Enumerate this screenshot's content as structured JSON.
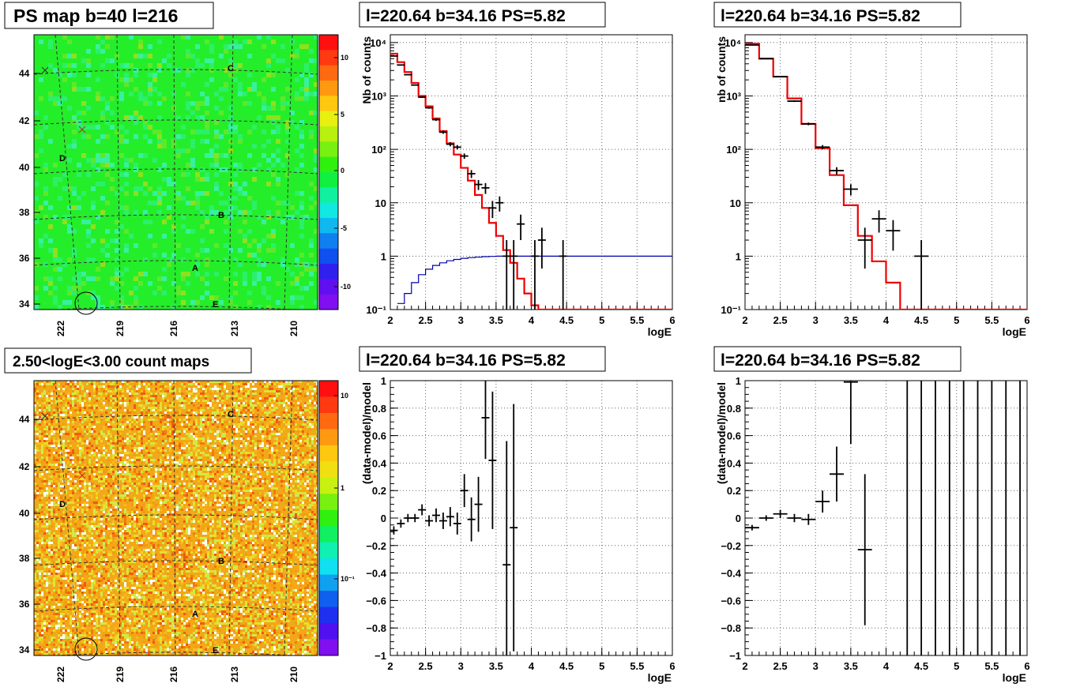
{
  "figure_panels": {
    "map_top_title": "PS map b=40 l=216",
    "map_bottom_title": "2.50<logE<3.00 count maps",
    "spec_title_1": "l=220.64 b=34.16 PS=5.82",
    "spec_title_2": "l=220.64 b=34.16 PS=5.82",
    "resid_title_1": "l=220.64 b=34.16 PS=5.82",
    "resid_title_2": "l=220.64 b=34.16 PS=5.82"
  },
  "chart_data": [
    {
      "id": "ps_map",
      "type": "heatmap",
      "title": "PS map b=40 l=216",
      "y_ticks": [
        "44",
        "42",
        "40",
        "38",
        "36",
        "34"
      ],
      "x_ticks": [
        "222",
        "219",
        "216",
        "213",
        "210"
      ],
      "colorbar_ticks": [
        "10",
        "5",
        "0",
        "-5",
        "-10"
      ],
      "colorbar_range": [
        -12,
        12
      ],
      "source_labels": [
        "A",
        "B",
        "C",
        "D",
        "E"
      ],
      "colors": {
        "base": "#22ee22",
        "alt": "#3af060",
        "hot": "#77e628"
      }
    },
    {
      "id": "count_map",
      "type": "heatmap",
      "title": "2.50<logE<3.00 count maps",
      "y_ticks": [
        "44",
        "42",
        "40",
        "38",
        "36",
        "34"
      ],
      "x_ticks": [
        "222",
        "219",
        "216",
        "213",
        "210"
      ],
      "colorbar_ticks": [
        "10",
        "1",
        "10⁻¹"
      ],
      "source_labels": [
        "A",
        "B",
        "C",
        "D",
        "E"
      ]
    },
    {
      "id": "spectrum_1",
      "type": "line",
      "title": "l=220.64 b=34.16 PS=5.82",
      "xlabel": "logE",
      "ylabel": "Nb of counts",
      "xlim": [
        2,
        6
      ],
      "ylim": [
        0.1,
        14000
      ],
      "log_y": true,
      "grid": true,
      "x_ticks": [
        "2",
        "2.5",
        "3",
        "3.5",
        "4",
        "4.5",
        "5",
        "5.5",
        "6"
      ],
      "y_ticks": [
        "10⁻¹",
        "1",
        "10",
        "10²",
        "10³",
        "10⁴"
      ],
      "points": [
        {
          "x": 2.05,
          "y": 5600
        },
        {
          "x": 2.15,
          "y": 3800
        },
        {
          "x": 2.25,
          "y": 2500
        },
        {
          "x": 2.35,
          "y": 1600
        },
        {
          "x": 2.45,
          "y": 950
        },
        {
          "x": 2.55,
          "y": 600
        },
        {
          "x": 2.65,
          "y": 360
        },
        {
          "x": 2.75,
          "y": 210
        },
        {
          "x": 2.85,
          "y": 125
        },
        {
          "x": 2.95,
          "y": 110
        },
        {
          "x": 3.05,
          "y": 75
        },
        {
          "x": 3.15,
          "y": 35
        },
        {
          "x": 3.25,
          "y": 22
        },
        {
          "x": 3.35,
          "y": 19
        },
        {
          "x": 3.45,
          "y": 8
        },
        {
          "x": 3.55,
          "y": 10
        },
        {
          "x": 3.65,
          "y": 1
        },
        {
          "x": 3.75,
          "y": 1
        },
        {
          "x": 3.85,
          "y": 4
        },
        {
          "x": 4.05,
          "y": 1
        },
        {
          "x": 4.15,
          "y": 2
        },
        {
          "x": 4.45,
          "y": 1
        }
      ],
      "series": [
        {
          "name": "model",
          "color": "#ee0000",
          "steps": [
            [
              2,
              6200
            ],
            [
              2.1,
              4300
            ],
            [
              2.2,
              2800
            ],
            [
              2.3,
              1750
            ],
            [
              2.4,
              1000
            ],
            [
              2.5,
              640
            ],
            [
              2.6,
              380
            ],
            [
              2.7,
              220
            ],
            [
              2.8,
              130
            ],
            [
              2.9,
              80
            ],
            [
              3.0,
              45
            ],
            [
              3.1,
              26
            ],
            [
              3.2,
              14
            ],
            [
              3.3,
              8
            ],
            [
              3.4,
              4.2
            ],
            [
              3.5,
              2.4
            ],
            [
              3.6,
              1.3
            ],
            [
              3.7,
              0.75
            ],
            [
              3.8,
              0.38
            ],
            [
              3.9,
              0.2
            ],
            [
              4.0,
              0.12
            ],
            [
              4.1,
              0.1
            ],
            [
              6,
              0.1
            ]
          ]
        },
        {
          "name": "acceptance",
          "color": "#0000aa",
          "steps": [
            [
              2.1,
              0.13
            ],
            [
              2.2,
              0.2
            ],
            [
              2.3,
              0.32
            ],
            [
              2.4,
              0.45
            ],
            [
              2.5,
              0.57
            ],
            [
              2.6,
              0.67
            ],
            [
              2.7,
              0.75
            ],
            [
              2.8,
              0.82
            ],
            [
              2.9,
              0.87
            ],
            [
              3.0,
              0.91
            ],
            [
              3.1,
              0.94
            ],
            [
              3.2,
              0.96
            ],
            [
              3.3,
              0.98
            ],
            [
              3.4,
              0.99
            ],
            [
              3.5,
              1
            ],
            [
              6,
              1
            ]
          ]
        }
      ]
    },
    {
      "id": "spectrum_2",
      "type": "line",
      "title": "l=220.64 b=34.16 PS=5.82",
      "xlabel": "logE",
      "ylabel": "nb of counts",
      "xlim": [
        2,
        6
      ],
      "ylim": [
        0.1,
        14000
      ],
      "log_y": true,
      "grid": true,
      "x_ticks": [
        "2",
        "2.5",
        "3",
        "3.5",
        "4",
        "4.5",
        "5",
        "5.5",
        "6"
      ],
      "y_ticks": [
        "10⁻¹",
        "1",
        "10",
        "10²",
        "10³",
        "10⁴"
      ],
      "points": [
        {
          "x": 2.1,
          "y": 9000
        },
        {
          "x": 2.3,
          "y": 5000
        },
        {
          "x": 2.5,
          "y": 2300
        },
        {
          "x": 2.7,
          "y": 800
        },
        {
          "x": 2.9,
          "y": 300
        },
        {
          "x": 3.1,
          "y": 110
        },
        {
          "x": 3.3,
          "y": 40
        },
        {
          "x": 3.5,
          "y": 18
        },
        {
          "x": 3.7,
          "y": 2
        },
        {
          "x": 3.9,
          "y": 5
        },
        {
          "x": 4.1,
          "y": 3
        },
        {
          "x": 4.5,
          "y": 1
        }
      ],
      "series": [
        {
          "name": "model",
          "color": "#ee0000",
          "steps": [
            [
              2,
              9500
            ],
            [
              2.2,
              5000
            ],
            [
              2.4,
              2300
            ],
            [
              2.6,
              900
            ],
            [
              2.8,
              300
            ],
            [
              3.0,
              105
            ],
            [
              3.2,
              33
            ],
            [
              3.4,
              9
            ],
            [
              3.6,
              2.4
            ],
            [
              3.8,
              0.8
            ],
            [
              4.0,
              0.32
            ],
            [
              4.2,
              0.1
            ],
            [
              6,
              0.1
            ]
          ]
        }
      ]
    },
    {
      "id": "residual_1",
      "type": "scatter",
      "title": "l=220.64 b=34.16 PS=5.82",
      "xlabel": "logE",
      "ylabel": "(data-model)/model",
      "xlim": [
        2,
        6
      ],
      "ylim": [
        -1,
        1
      ],
      "grid": true,
      "x_ticks": [
        "2",
        "2.5",
        "3",
        "3.5",
        "4",
        "4.5",
        "5",
        "5.5",
        "6"
      ],
      "y_ticks": [
        "1",
        "0.8",
        "0.6",
        "0.4",
        "0.2",
        "0",
        "-0.2",
        "-0.4",
        "-0.6",
        "-0.8",
        "-1"
      ],
      "points": [
        {
          "x": 2.05,
          "y": -0.09
        },
        {
          "x": 2.15,
          "y": -0.04
        },
        {
          "x": 2.25,
          "y": 0.0
        },
        {
          "x": 2.35,
          "y": 0.0
        },
        {
          "x": 2.45,
          "y": 0.06
        },
        {
          "x": 2.55,
          "y": -0.02
        },
        {
          "x": 2.65,
          "y": 0.02
        },
        {
          "x": 2.75,
          "y": -0.02
        },
        {
          "x": 2.85,
          "y": 0.01
        },
        {
          "x": 2.95,
          "y": -0.04
        },
        {
          "x": 3.05,
          "y": 0.2
        },
        {
          "x": 3.15,
          "y": -0.01
        },
        {
          "x": 3.25,
          "y": 0.1
        },
        {
          "x": 3.35,
          "y": 0.73
        },
        {
          "x": 3.45,
          "y": 0.42
        },
        {
          "x": 3.65,
          "y": -0.34
        },
        {
          "x": 3.75,
          "y": -0.07
        }
      ]
    },
    {
      "id": "residual_2",
      "type": "scatter",
      "title": "l=220.64 b=34.16 PS=5.82",
      "xlabel": "logE",
      "ylabel": "(data-model)/model",
      "xlim": [
        2,
        6
      ],
      "ylim": [
        -1,
        1
      ],
      "grid": true,
      "x_ticks": [
        "2",
        "2.5",
        "3",
        "3.5",
        "4",
        "4.5",
        "5",
        "5.5",
        "6"
      ],
      "y_ticks": [
        "1",
        "0.8",
        "0.6",
        "0.4",
        "0.2",
        "0",
        "-0.2",
        "-0.4",
        "-0.6",
        "-0.8",
        "-1"
      ],
      "points": [
        {
          "x": 2.1,
          "y": -0.07
        },
        {
          "x": 2.3,
          "y": 0.0
        },
        {
          "x": 2.5,
          "y": 0.03
        },
        {
          "x": 2.7,
          "y": 0.0
        },
        {
          "x": 2.9,
          "y": -0.01
        },
        {
          "x": 3.1,
          "y": 0.12
        },
        {
          "x": 3.3,
          "y": 0.32
        },
        {
          "x": 3.5,
          "y": 0.99
        },
        {
          "x": 3.7,
          "y": -0.23
        }
      ]
    }
  ]
}
